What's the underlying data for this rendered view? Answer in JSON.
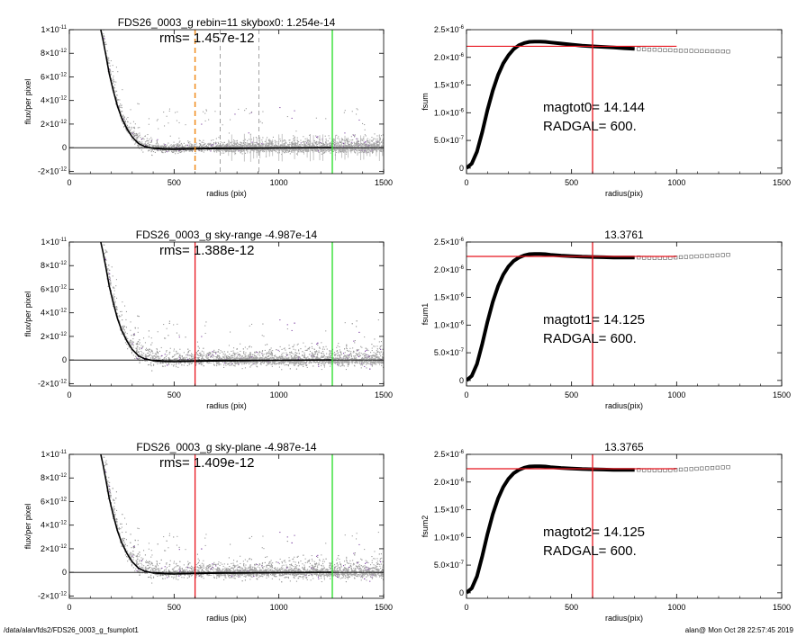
{
  "footer": {
    "path": "/data/alan/fds2/FDS26_0003_g_fsumplot1",
    "stamp": "alan@  Mon Oct 28 22:57:45 2019"
  },
  "colors": {
    "red": "#e8141e",
    "green": "#22dd22",
    "orange": "#f08c1c",
    "gray_points": "#9a9a9a",
    "purple_points": "#7a3fa0",
    "profile": "#000000"
  },
  "chart_data": [
    {
      "type": "scatter",
      "panel": "left-1",
      "title": "FDS26_0003_g rebin=11    skybox0:  1.254e-14",
      "annotation": "rms= 1.457e-12",
      "xlabel": "radius (pix)",
      "ylabel": "flux/per pixel",
      "xlim": [
        0,
        1500
      ],
      "ylim": [
        -2.2e-12,
        1e-11
      ],
      "xticks": [
        "0",
        "500",
        "1000",
        "1500"
      ],
      "yticks": [
        {
          "v": 1e-11,
          "m": "1×10",
          "e": "-11"
        },
        {
          "v": 8e-12,
          "m": "8×10",
          "e": "-12"
        },
        {
          "v": 6e-12,
          "m": "6×10",
          "e": "-12"
        },
        {
          "v": 4e-12,
          "m": "4×10",
          "e": "-12"
        },
        {
          "v": 2e-12,
          "m": "2×10",
          "e": "-12"
        },
        {
          "v": 0,
          "m": "0",
          "e": ""
        },
        {
          "v": -2e-12,
          "m": "-2×10",
          "e": "-12"
        }
      ],
      "vlines": [
        {
          "x": 600,
          "color": "#f08c1c",
          "dash": "6,4",
          "width": 1.5
        },
        {
          "x": 720,
          "color": "#8c8c8c",
          "dash": "5,4",
          "width": 0.8
        },
        {
          "x": 905,
          "color": "#8c8c8c",
          "dash": "5,4",
          "width": 0.8
        },
        {
          "x": 1255,
          "color": "#22dd22",
          "dash": "",
          "width": 1.3
        }
      ],
      "profile_x": [
        150,
        160,
        175,
        190,
        210,
        230,
        250,
        275,
        300,
        330,
        360,
        400,
        450,
        500,
        600,
        800,
        1000,
        1250
      ],
      "profile_y": [
        1e-11,
        9.2e-12,
        7.8e-12,
        6.3e-12,
        4.8e-12,
        3.5e-12,
        2.5e-12,
        1.6e-12,
        9e-13,
        3.5e-13,
        1e-13,
        -5e-14,
        -1.2e-13,
        -1.3e-13,
        -1e-13,
        -6e-14,
        -3e-14,
        0
      ],
      "scatter_sigma": 3e-13,
      "scatter_xmax": 1500,
      "error_bars": true
    },
    {
      "type": "scatter",
      "panel": "left-2",
      "title": "FDS26_0003_g sky-range -4.987e-14",
      "annotation": "rms= 1.388e-12",
      "xlabel": "radius (pix)",
      "ylabel": "flux/per pixel",
      "xlim": [
        0,
        1500
      ],
      "ylim": [
        -2.2e-12,
        1e-11
      ],
      "xticks": [
        "0",
        "500",
        "1000",
        "1500"
      ],
      "yticks": [
        {
          "v": 1e-11,
          "m": "1×10",
          "e": "-11"
        },
        {
          "v": 8e-12,
          "m": "8×10",
          "e": "-12"
        },
        {
          "v": 6e-12,
          "m": "6×10",
          "e": "-12"
        },
        {
          "v": 4e-12,
          "m": "4×10",
          "e": "-12"
        },
        {
          "v": 2e-12,
          "m": "2×10",
          "e": "-12"
        },
        {
          "v": 0,
          "m": "0",
          "e": ""
        },
        {
          "v": -2e-12,
          "m": "-2×10",
          "e": "-12"
        }
      ],
      "vlines": [
        {
          "x": 600,
          "color": "#e8141e",
          "dash": "",
          "width": 1.3
        },
        {
          "x": 1255,
          "color": "#22dd22",
          "dash": "",
          "width": 1.3
        }
      ],
      "profile_x": [
        150,
        160,
        175,
        190,
        210,
        230,
        250,
        275,
        300,
        330,
        360,
        400,
        450,
        500,
        600,
        800,
        1000,
        1250
      ],
      "profile_y": [
        1e-11,
        9.2e-12,
        7.8e-12,
        6.3e-12,
        4.8e-12,
        3.5e-12,
        2.5e-12,
        1.6e-12,
        9e-13,
        3.5e-13,
        1e-13,
        -5e-14,
        -1.2e-13,
        -1.3e-13,
        -1e-13,
        -6e-14,
        -3e-14,
        0
      ],
      "scatter_sigma": 4.5e-13,
      "scatter_xmax": 1500,
      "error_bars": false
    },
    {
      "type": "scatter",
      "panel": "left-3",
      "title": "FDS26_0003_g sky-plane -4.987e-14",
      "annotation": "rms= 1.409e-12",
      "xlabel": "radius (pix)",
      "ylabel": "flux/per pixel",
      "xlim": [
        0,
        1500
      ],
      "ylim": [
        -2.2e-12,
        1e-11
      ],
      "xticks": [
        "0",
        "500",
        "1000",
        "1500"
      ],
      "yticks": [
        {
          "v": 1e-11,
          "m": "1×10",
          "e": "-11"
        },
        {
          "v": 8e-12,
          "m": "8×10",
          "e": "-12"
        },
        {
          "v": 6e-12,
          "m": "6×10",
          "e": "-12"
        },
        {
          "v": 4e-12,
          "m": "4×10",
          "e": "-12"
        },
        {
          "v": 2e-12,
          "m": "2×10",
          "e": "-12"
        },
        {
          "v": 0,
          "m": "0",
          "e": ""
        },
        {
          "v": -2e-12,
          "m": "-2×10",
          "e": "-12"
        }
      ],
      "vlines": [
        {
          "x": 600,
          "color": "#e8141e",
          "dash": "",
          "width": 1.3
        },
        {
          "x": 1255,
          "color": "#22dd22",
          "dash": "",
          "width": 1.3
        }
      ],
      "profile_x": [
        150,
        160,
        175,
        190,
        210,
        230,
        250,
        275,
        300,
        330,
        360,
        400,
        450,
        500,
        600,
        800,
        1000,
        1250
      ],
      "profile_y": [
        1e-11,
        9.2e-12,
        7.8e-12,
        6.3e-12,
        4.8e-12,
        3.5e-12,
        2.5e-12,
        1.6e-12,
        9e-13,
        3.5e-13,
        1e-13,
        -5e-14,
        -1.2e-13,
        -1.3e-13,
        -1e-13,
        -6e-14,
        -3e-14,
        0
      ],
      "scatter_sigma": 4.5e-13,
      "scatter_xmax": 1500,
      "error_bars": false
    },
    {
      "type": "line",
      "panel": "right-1",
      "title": "",
      "annotations": [
        "magtot0=  14.144",
        "RADGAL=    600."
      ],
      "xlabel": "radius(pix)",
      "ylabel": "fsum",
      "xlim": [
        0,
        1500
      ],
      "ylim": [
        -1e-07,
        2.5e-06
      ],
      "xticks": [
        "0",
        "500",
        "1000",
        "1500"
      ],
      "yticks": [
        {
          "v": 2.5e-06,
          "m": "2.5×10",
          "e": "-6"
        },
        {
          "v": 2e-06,
          "m": "2.0×10",
          "e": "-6"
        },
        {
          "v": 1.5e-06,
          "m": "1.5×10",
          "e": "-6"
        },
        {
          "v": 1e-06,
          "m": "1.0×10",
          "e": "-6"
        },
        {
          "v": 5e-07,
          "m": "5.0×10",
          "e": "-7"
        },
        {
          "v": 0,
          "m": "0",
          "e": ""
        }
      ],
      "hline": {
        "y": 2.2e-06,
        "x0": 0,
        "x1": 1000
      },
      "vline_x": 600,
      "curve_x": [
        0,
        25,
        50,
        75,
        100,
        125,
        150,
        175,
        200,
        225,
        250,
        275,
        300,
        325,
        350,
        375,
        400,
        450,
        500,
        550,
        600,
        650,
        700,
        750,
        800
      ],
      "curve_y": [
        0,
        8e-08,
        3e-07,
        6.5e-07,
        1.05e-06,
        1.4e-06,
        1.68e-06,
        1.89e-06,
        2.04e-06,
        2.15e-06,
        2.22e-06,
        2.26e-06,
        2.28e-06,
        2.285e-06,
        2.285e-06,
        2.28e-06,
        2.27e-06,
        2.25e-06,
        2.23e-06,
        2.21e-06,
        2.2e-06,
        2.19e-06,
        2.18e-06,
        2.165e-06,
        2.155e-06
      ],
      "boxes_x": [
        820,
        845,
        870,
        895,
        920,
        945,
        970,
        995,
        1020,
        1045,
        1070,
        1095,
        1120,
        1145,
        1170,
        1195,
        1220,
        1245
      ],
      "boxes_y": [
        2.15e-06,
        2.145e-06,
        2.14e-06,
        2.14e-06,
        2.135e-06,
        2.13e-06,
        2.13e-06,
        2.125e-06,
        2.12e-06,
        2.12e-06,
        2.118e-06,
        2.115e-06,
        2.113e-06,
        2.112e-06,
        2.11e-06,
        2.11e-06,
        2.108e-06,
        2.105e-06
      ]
    },
    {
      "type": "line",
      "panel": "right-2",
      "title": "13.3761",
      "annotations": [
        "magtot1=  14.125",
        "RADGAL=    600."
      ],
      "xlabel": "radius(pix)",
      "ylabel": "fsum1",
      "xlim": [
        0,
        1500
      ],
      "ylim": [
        -1e-07,
        2.5e-06
      ],
      "xticks": [
        "0",
        "500",
        "1000",
        "1500"
      ],
      "yticks": [
        {
          "v": 2.5e-06,
          "m": "2.5×10",
          "e": "-6"
        },
        {
          "v": 2e-06,
          "m": "2.0×10",
          "e": "-6"
        },
        {
          "v": 1.5e-06,
          "m": "1.5×10",
          "e": "-6"
        },
        {
          "v": 1e-06,
          "m": "1.0×10",
          "e": "-6"
        },
        {
          "v": 5e-07,
          "m": "5.0×10",
          "e": "-7"
        },
        {
          "v": 0,
          "m": "0",
          "e": ""
        }
      ],
      "hline": {
        "y": 2.24e-06,
        "x0": 0,
        "x1": 1000
      },
      "vline_x": 600,
      "curve_x": [
        0,
        25,
        50,
        75,
        100,
        125,
        150,
        175,
        200,
        225,
        250,
        275,
        300,
        325,
        350,
        375,
        400,
        450,
        500,
        550,
        600,
        650,
        700,
        750,
        800
      ],
      "curve_y": [
        0,
        8e-08,
        3e-07,
        6.6e-07,
        1.06e-06,
        1.42e-06,
        1.7e-06,
        1.91e-06,
        2.06e-06,
        2.16e-06,
        2.22e-06,
        2.26e-06,
        2.28e-06,
        2.285e-06,
        2.285e-06,
        2.28e-06,
        2.27e-06,
        2.255e-06,
        2.245e-06,
        2.235e-06,
        2.23e-06,
        2.225e-06,
        2.22e-06,
        2.22e-06,
        2.22e-06
      ],
      "boxes_x": [
        820,
        845,
        870,
        895,
        920,
        945,
        970,
        995,
        1020,
        1045,
        1070,
        1095,
        1120,
        1145,
        1170,
        1195,
        1220,
        1245
      ],
      "boxes_y": [
        2.22e-06,
        2.215e-06,
        2.215e-06,
        2.21e-06,
        2.21e-06,
        2.21e-06,
        2.215e-06,
        2.22e-06,
        2.225e-06,
        2.23e-06,
        2.235e-06,
        2.24e-06,
        2.245e-06,
        2.25e-06,
        2.255e-06,
        2.26e-06,
        2.265e-06,
        2.27e-06
      ]
    },
    {
      "type": "line",
      "panel": "right-3",
      "title": "13.3765",
      "annotations": [
        "magtot2=  14.125",
        "RADGAL=    600."
      ],
      "xlabel": "radius(pix)",
      "ylabel": "fsum2",
      "xlim": [
        0,
        1500
      ],
      "ylim": [
        -1e-07,
        2.5e-06
      ],
      "xticks": [
        "0",
        "500",
        "1000",
        "1500"
      ],
      "yticks": [
        {
          "v": 2.5e-06,
          "m": "2.5×10",
          "e": "-6"
        },
        {
          "v": 2e-06,
          "m": "2.0×10",
          "e": "-6"
        },
        {
          "v": 1.5e-06,
          "m": "1.5×10",
          "e": "-6"
        },
        {
          "v": 1e-06,
          "m": "1.0×10",
          "e": "-6"
        },
        {
          "v": 5e-07,
          "m": "5.0×10",
          "e": "-7"
        },
        {
          "v": 0,
          "m": "0",
          "e": ""
        }
      ],
      "hline": {
        "y": 2.24e-06,
        "x0": 0,
        "x1": 1000
      },
      "vline_x": 600,
      "curve_x": [
        0,
        25,
        50,
        75,
        100,
        125,
        150,
        175,
        200,
        225,
        250,
        275,
        300,
        325,
        350,
        375,
        400,
        450,
        500,
        550,
        600,
        650,
        700,
        750,
        800
      ],
      "curve_y": [
        0,
        8e-08,
        3e-07,
        6.6e-07,
        1.06e-06,
        1.42e-06,
        1.7e-06,
        1.91e-06,
        2.06e-06,
        2.16e-06,
        2.22e-06,
        2.26e-06,
        2.28e-06,
        2.285e-06,
        2.285e-06,
        2.28e-06,
        2.27e-06,
        2.255e-06,
        2.245e-06,
        2.235e-06,
        2.23e-06,
        2.225e-06,
        2.22e-06,
        2.22e-06,
        2.22e-06
      ],
      "boxes_x": [
        820,
        845,
        870,
        895,
        920,
        945,
        970,
        995,
        1020,
        1045,
        1070,
        1095,
        1120,
        1145,
        1170,
        1195,
        1220,
        1245
      ],
      "boxes_y": [
        2.22e-06,
        2.215e-06,
        2.215e-06,
        2.21e-06,
        2.21e-06,
        2.21e-06,
        2.215e-06,
        2.22e-06,
        2.225e-06,
        2.23e-06,
        2.235e-06,
        2.24e-06,
        2.245e-06,
        2.25e-06,
        2.255e-06,
        2.26e-06,
        2.265e-06,
        2.27e-06
      ]
    }
  ]
}
